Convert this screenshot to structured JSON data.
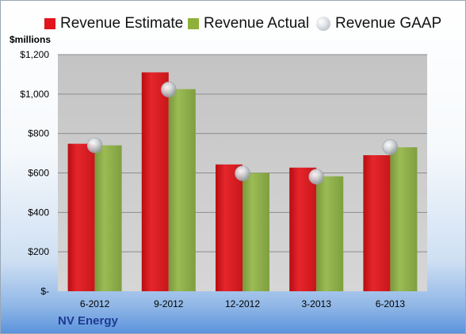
{
  "chart_data": {
    "type": "bar",
    "categories": [
      "6-2012",
      "9-2012",
      "12-2012",
      "3-2013",
      "6-2013"
    ],
    "series": [
      {
        "name": "Revenue Estimate",
        "values": [
          748,
          1110,
          643,
          627,
          690
        ],
        "color": "#e0161c"
      },
      {
        "name": "Revenue Actual",
        "values": [
          740,
          1025,
          600,
          583,
          730
        ],
        "color": "#8fb03a"
      },
      {
        "name": "Revenue GAAP",
        "values": [
          740,
          1023,
          598,
          581,
          731
        ],
        "color": "#c8ccd2",
        "marker": "circle"
      }
    ],
    "ylabel": "$millions",
    "ylim": [
      0,
      1200
    ],
    "yticks": [
      0,
      200,
      400,
      600,
      800,
      1000,
      1200
    ],
    "ytick_labels": [
      "$-",
      "$200",
      "$400",
      "$600",
      "$800",
      "$1,000",
      "$1,200"
    ],
    "grid": true,
    "legend_position": "top",
    "plot_background": "#c9c9c9"
  },
  "company": "NV Energy"
}
